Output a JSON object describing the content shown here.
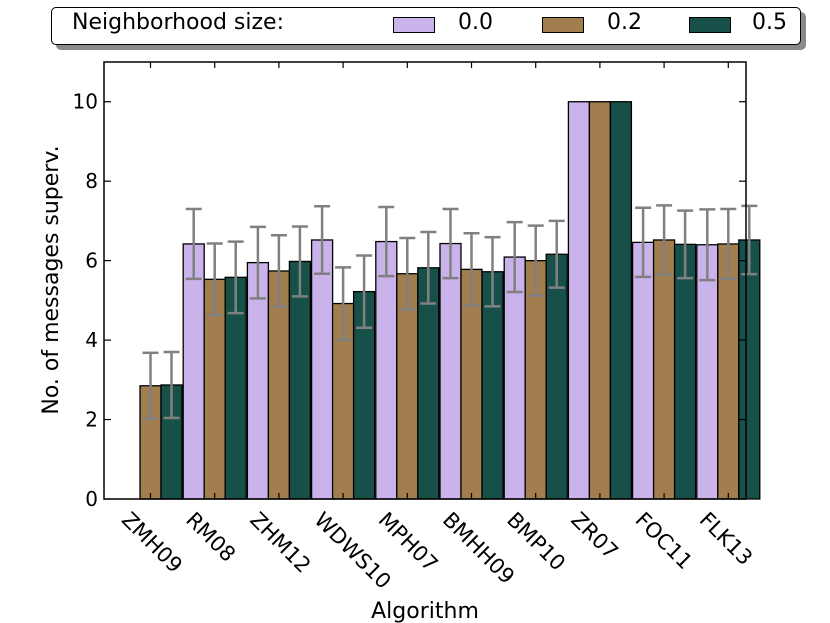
{
  "chart_data": {
    "type": "bar",
    "title": "",
    "xlabel": "Algorithm",
    "ylabel": "No. of messages superv.",
    "ylim": [
      0,
      11
    ],
    "yticks": [
      0,
      2,
      4,
      6,
      8,
      10
    ],
    "grid": false,
    "legend": {
      "title": "Neighborhood size:",
      "placement": "top"
    },
    "categories": [
      "ZMH09",
      "RM08",
      "ZHM12",
      "WDWS10",
      "MPH07",
      "BMHH09",
      "BMP10",
      "ZR07",
      "FOC11",
      "FLK13"
    ],
    "series": [
      {
        "name": "0.0",
        "color": "#c9b3ea",
        "values": [
          null,
          6.42,
          5.95,
          6.52,
          6.48,
          6.43,
          6.09,
          10.0,
          6.46,
          6.4
        ],
        "errors": [
          null,
          0.88,
          0.9,
          0.85,
          0.87,
          0.87,
          0.88,
          0.0,
          0.87,
          0.89
        ]
      },
      {
        "name": "0.2",
        "color": "#a27d4d",
        "values": [
          2.85,
          5.53,
          5.74,
          4.92,
          5.67,
          5.78,
          6.0,
          10.0,
          6.52,
          6.42
        ],
        "errors": [
          0.83,
          0.9,
          0.9,
          0.91,
          0.9,
          0.91,
          0.88,
          0.0,
          0.87,
          0.88
        ]
      },
      {
        "name": "0.5",
        "color": "#175048",
        "values": [
          2.87,
          5.58,
          5.98,
          5.22,
          5.82,
          5.72,
          6.16,
          10.0,
          6.41,
          6.52
        ],
        "errors": [
          0.83,
          0.9,
          0.88,
          0.91,
          0.9,
          0.87,
          0.84,
          0.0,
          0.85,
          0.86
        ]
      }
    ],
    "error_bar_color": "#808080"
  }
}
